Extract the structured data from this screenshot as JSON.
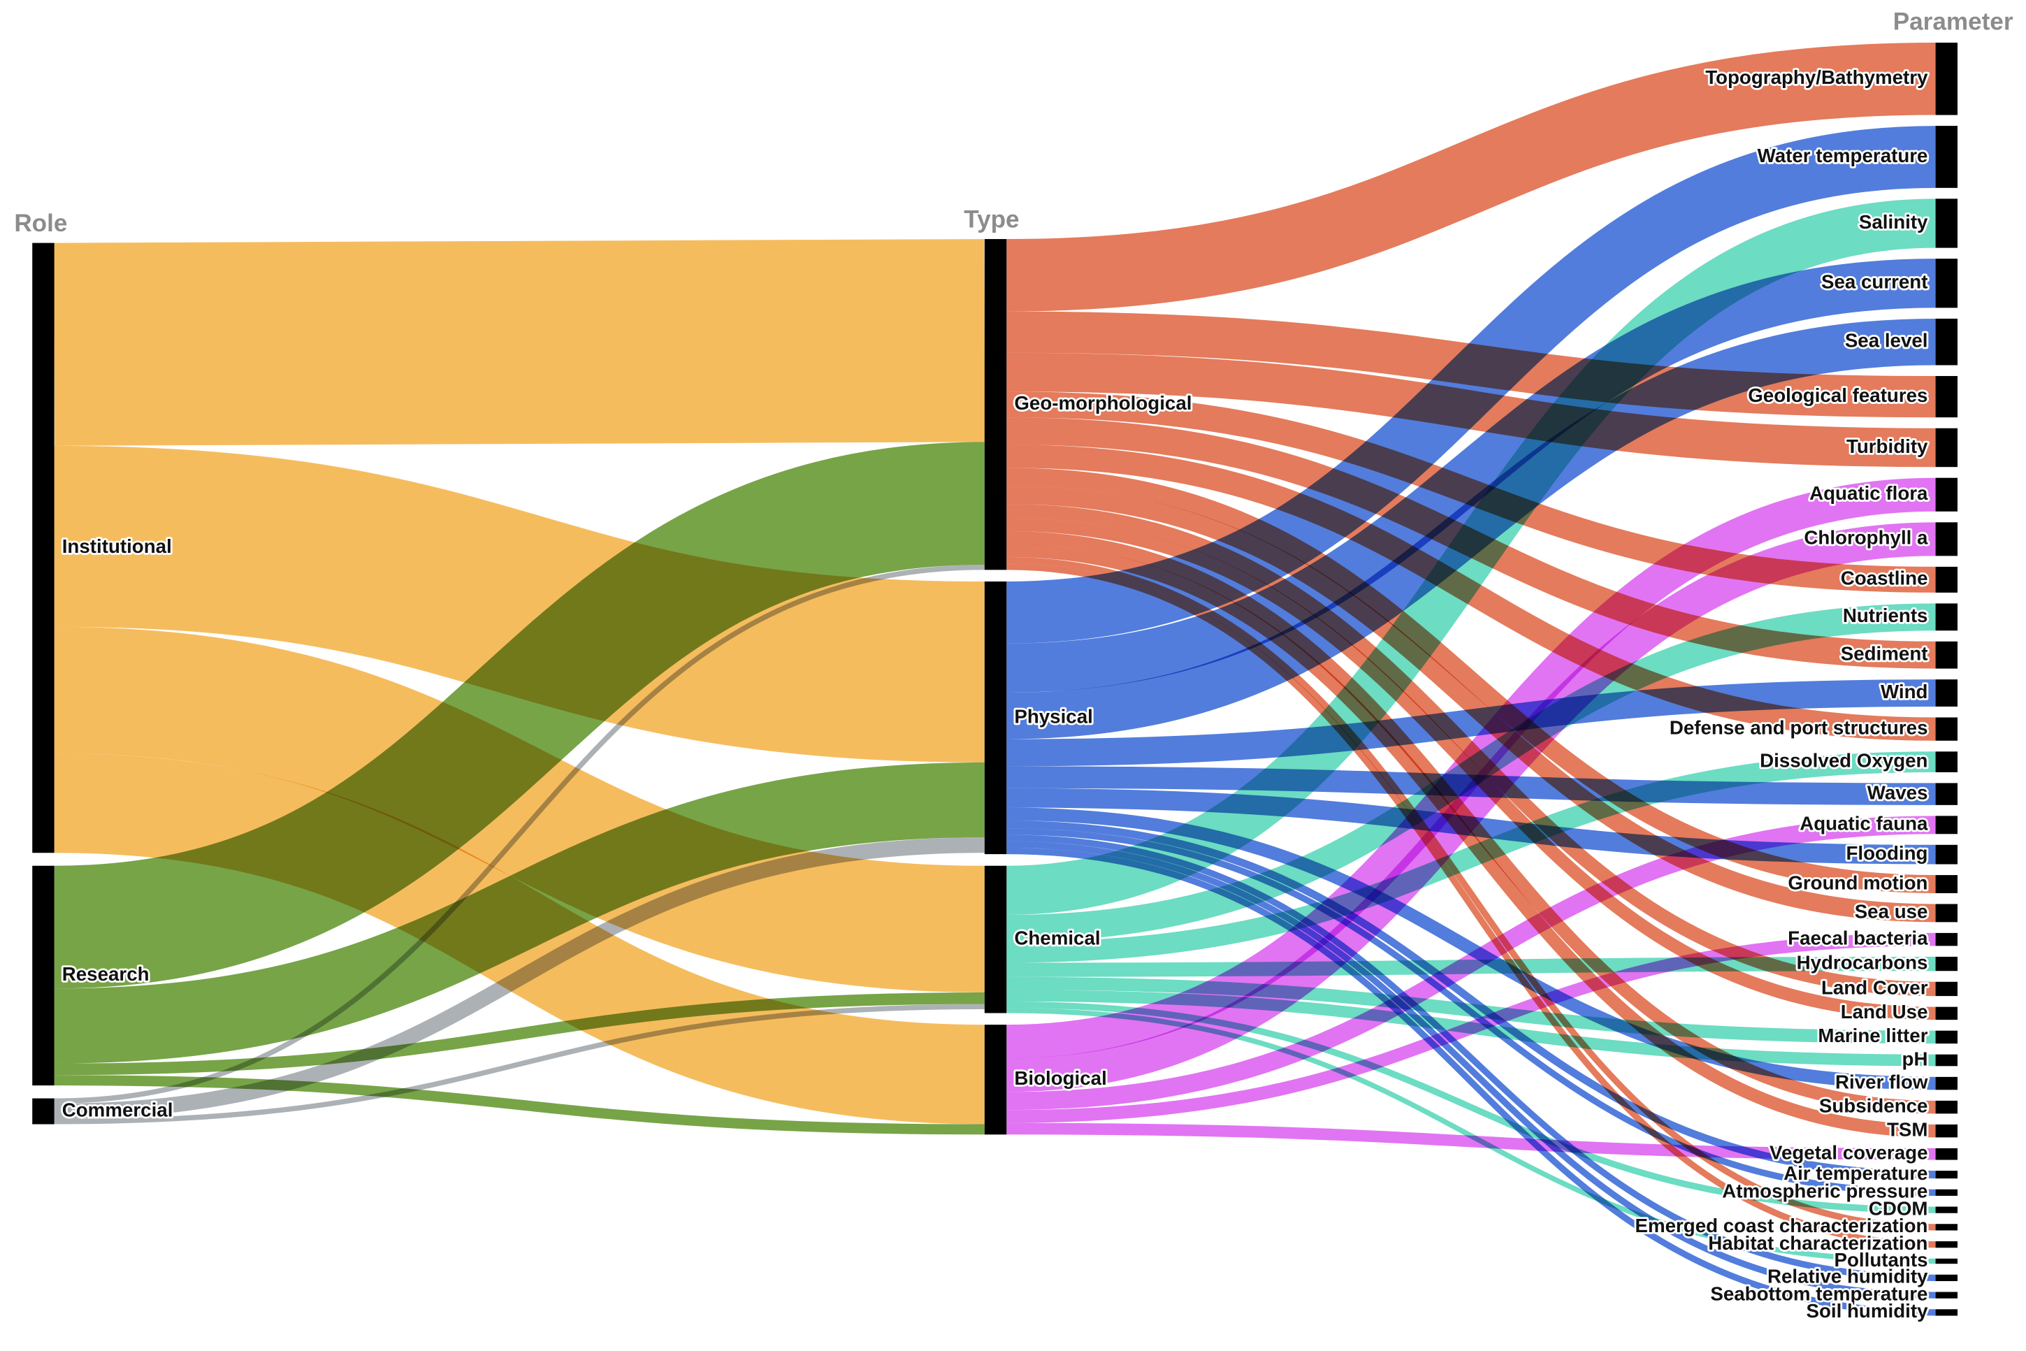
{
  "chart_data": {
    "type": "sankey",
    "columns": [
      "Role",
      "Type",
      "Parameter"
    ],
    "nodes": [
      {
        "label": "Institutional",
        "column": 0,
        "color": "#f4b041"
      },
      {
        "label": "Research",
        "column": 0,
        "color": "#5f9426"
      },
      {
        "label": "Commercial",
        "column": 0,
        "color": "#9ea3a8"
      },
      {
        "label": "Geo-morphological",
        "column": 1,
        "color": "#e0643f"
      },
      {
        "label": "Physical",
        "column": 1,
        "color": "#3366d6"
      },
      {
        "label": "Chemical",
        "column": 1,
        "color": "#52d6b8"
      },
      {
        "label": "Biological",
        "column": 1,
        "color": "#dc5cf0"
      },
      {
        "label": "Topography/Bathymetry",
        "column": 2
      },
      {
        "label": "Water temperature",
        "column": 2
      },
      {
        "label": "Salinity",
        "column": 2
      },
      {
        "label": "Sea current",
        "column": 2
      },
      {
        "label": "Sea level",
        "column": 2
      },
      {
        "label": "Geological features",
        "column": 2
      },
      {
        "label": "Turbidity",
        "column": 2
      },
      {
        "label": "Aquatic flora",
        "column": 2
      },
      {
        "label": "Chlorophyll a",
        "column": 2
      },
      {
        "label": "Coastline",
        "column": 2
      },
      {
        "label": "Nutrients",
        "column": 2
      },
      {
        "label": "Sediment",
        "column": 2
      },
      {
        "label": "Wind",
        "column": 2
      },
      {
        "label": "Defense and port structures",
        "column": 2
      },
      {
        "label": "Dissolved Oxygen",
        "column": 2
      },
      {
        "label": "Waves",
        "column": 2
      },
      {
        "label": "Aquatic fauna",
        "column": 2
      },
      {
        "label": "Flooding",
        "column": 2
      },
      {
        "label": "Ground motion",
        "column": 2
      },
      {
        "label": "Sea use",
        "column": 2
      },
      {
        "label": "Faecal bacteria",
        "column": 2
      },
      {
        "label": "Hydrocarbons",
        "column": 2
      },
      {
        "label": "Land Cover",
        "column": 2
      },
      {
        "label": "Land Use",
        "column": 2
      },
      {
        "label": "Marine litter",
        "column": 2
      },
      {
        "label": "pH",
        "column": 2
      },
      {
        "label": "River flow",
        "column": 2
      },
      {
        "label": "Subsidence",
        "column": 2
      },
      {
        "label": "TSM",
        "column": 2
      },
      {
        "label": "Vegetal coverage",
        "column": 2
      },
      {
        "label": "Air temperature",
        "column": 2
      },
      {
        "label": "Atmospheric pressure",
        "column": 2
      },
      {
        "label": "CDOM",
        "column": 2
      },
      {
        "label": "Emerged coast characterization",
        "column": 2
      },
      {
        "label": "Habitat characterization",
        "column": 2
      },
      {
        "label": "Pollutants",
        "column": 2
      },
      {
        "label": "Relative humidity",
        "column": 2
      },
      {
        "label": "Seabottom temperature",
        "column": 2
      },
      {
        "label": "Soil humidity",
        "column": 2
      }
    ],
    "links": [
      {
        "source": 0,
        "target": 3,
        "value": 157
      },
      {
        "source": 0,
        "target": 4,
        "value": 140
      },
      {
        "source": 0,
        "target": 5,
        "value": 98
      },
      {
        "source": 0,
        "target": 6,
        "value": 77
      },
      {
        "source": 1,
        "target": 3,
        "value": 95
      },
      {
        "source": 1,
        "target": 4,
        "value": 58
      },
      {
        "source": 1,
        "target": 5,
        "value": 9
      },
      {
        "source": 1,
        "target": 6,
        "value": 8
      },
      {
        "source": 2,
        "target": 3,
        "value": 4
      },
      {
        "source": 2,
        "target": 4,
        "value": 12
      },
      {
        "source": 2,
        "target": 5,
        "value": 4
      },
      {
        "source": 3,
        "target": 7,
        "value": 56
      },
      {
        "source": 3,
        "target": 12,
        "value": 32
      },
      {
        "source": 3,
        "target": 13,
        "value": 30
      },
      {
        "source": 3,
        "target": 16,
        "value": 20
      },
      {
        "source": 3,
        "target": 18,
        "value": 21
      },
      {
        "source": 3,
        "target": 20,
        "value": 18
      },
      {
        "source": 3,
        "target": 25,
        "value": 14
      },
      {
        "source": 3,
        "target": 26,
        "value": 14
      },
      {
        "source": 3,
        "target": 29,
        "value": 11
      },
      {
        "source": 3,
        "target": 30,
        "value": 10
      },
      {
        "source": 3,
        "target": 34,
        "value": 10
      },
      {
        "source": 3,
        "target": 35,
        "value": 10
      },
      {
        "source": 3,
        "target": 40,
        "value": 5
      },
      {
        "source": 3,
        "target": 41,
        "value": 5
      },
      {
        "source": 4,
        "target": 8,
        "value": 48
      },
      {
        "source": 4,
        "target": 10,
        "value": 38
      },
      {
        "source": 4,
        "target": 11,
        "value": 36
      },
      {
        "source": 4,
        "target": 19,
        "value": 21
      },
      {
        "source": 4,
        "target": 22,
        "value": 17
      },
      {
        "source": 4,
        "target": 24,
        "value": 15
      },
      {
        "source": 4,
        "target": 33,
        "value": 10
      },
      {
        "source": 4,
        "target": 37,
        "value": 6
      },
      {
        "source": 4,
        "target": 38,
        "value": 5
      },
      {
        "source": 4,
        "target": 43,
        "value": 5
      },
      {
        "source": 4,
        "target": 44,
        "value": 5
      },
      {
        "source": 4,
        "target": 45,
        "value": 5
      },
      {
        "source": 5,
        "target": 9,
        "value": 38
      },
      {
        "source": 5,
        "target": 17,
        "value": 21
      },
      {
        "source": 5,
        "target": 21,
        "value": 16
      },
      {
        "source": 5,
        "target": 28,
        "value": 11
      },
      {
        "source": 5,
        "target": 31,
        "value": 10
      },
      {
        "source": 5,
        "target": 32,
        "value": 9
      },
      {
        "source": 5,
        "target": 39,
        "value": 5
      },
      {
        "source": 5,
        "target": 42,
        "value": 4
      },
      {
        "source": 6,
        "target": 14,
        "value": 26
      },
      {
        "source": 6,
        "target": 15,
        "value": 26
      },
      {
        "source": 6,
        "target": 23,
        "value": 14
      },
      {
        "source": 6,
        "target": 27,
        "value": 10
      },
      {
        "source": 6,
        "target": 36,
        "value": 9
      }
    ]
  }
}
